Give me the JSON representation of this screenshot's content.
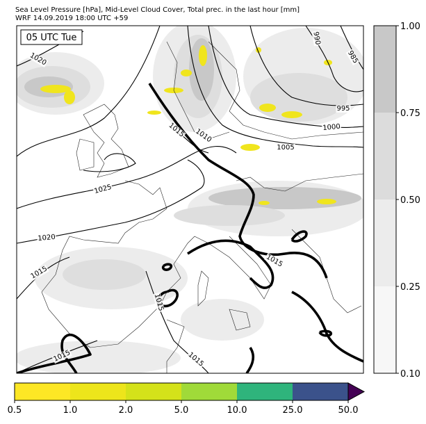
{
  "header": {
    "title": "Sea Level Pressure [hPa], Mid-Level Cloud Cover, Total prec. in the last hour [mm]",
    "subtitle": "WRF 14.09.2019 18:00 UTC +59"
  },
  "map": {
    "time_label": "05 UTC Tue",
    "contour_labels": [
      "1020",
      "990",
      "985",
      "995",
      "1000",
      "1005",
      "1010",
      "1015",
      "1025",
      "1020",
      "1015",
      "1015",
      "1015",
      "1015",
      "1015"
    ]
  },
  "cloud_colorbar": {
    "ticks": [
      "0.10",
      "0.25",
      "0.50",
      "0.75",
      "1.00"
    ],
    "colors": [
      "#f7f7f7",
      "#ececec",
      "#dcdcdc",
      "#c8c8c8"
    ]
  },
  "precip_colorbar": {
    "ticks": [
      "0.5",
      "1.0",
      "2.0",
      "5.0",
      "10.0",
      "25.0",
      "50.0"
    ],
    "colors": [
      "#fde725",
      "#ede51b",
      "#d4e21a",
      "#a0da39",
      "#2fb47c",
      "#3b528b"
    ],
    "extend_color": "#440154"
  }
}
